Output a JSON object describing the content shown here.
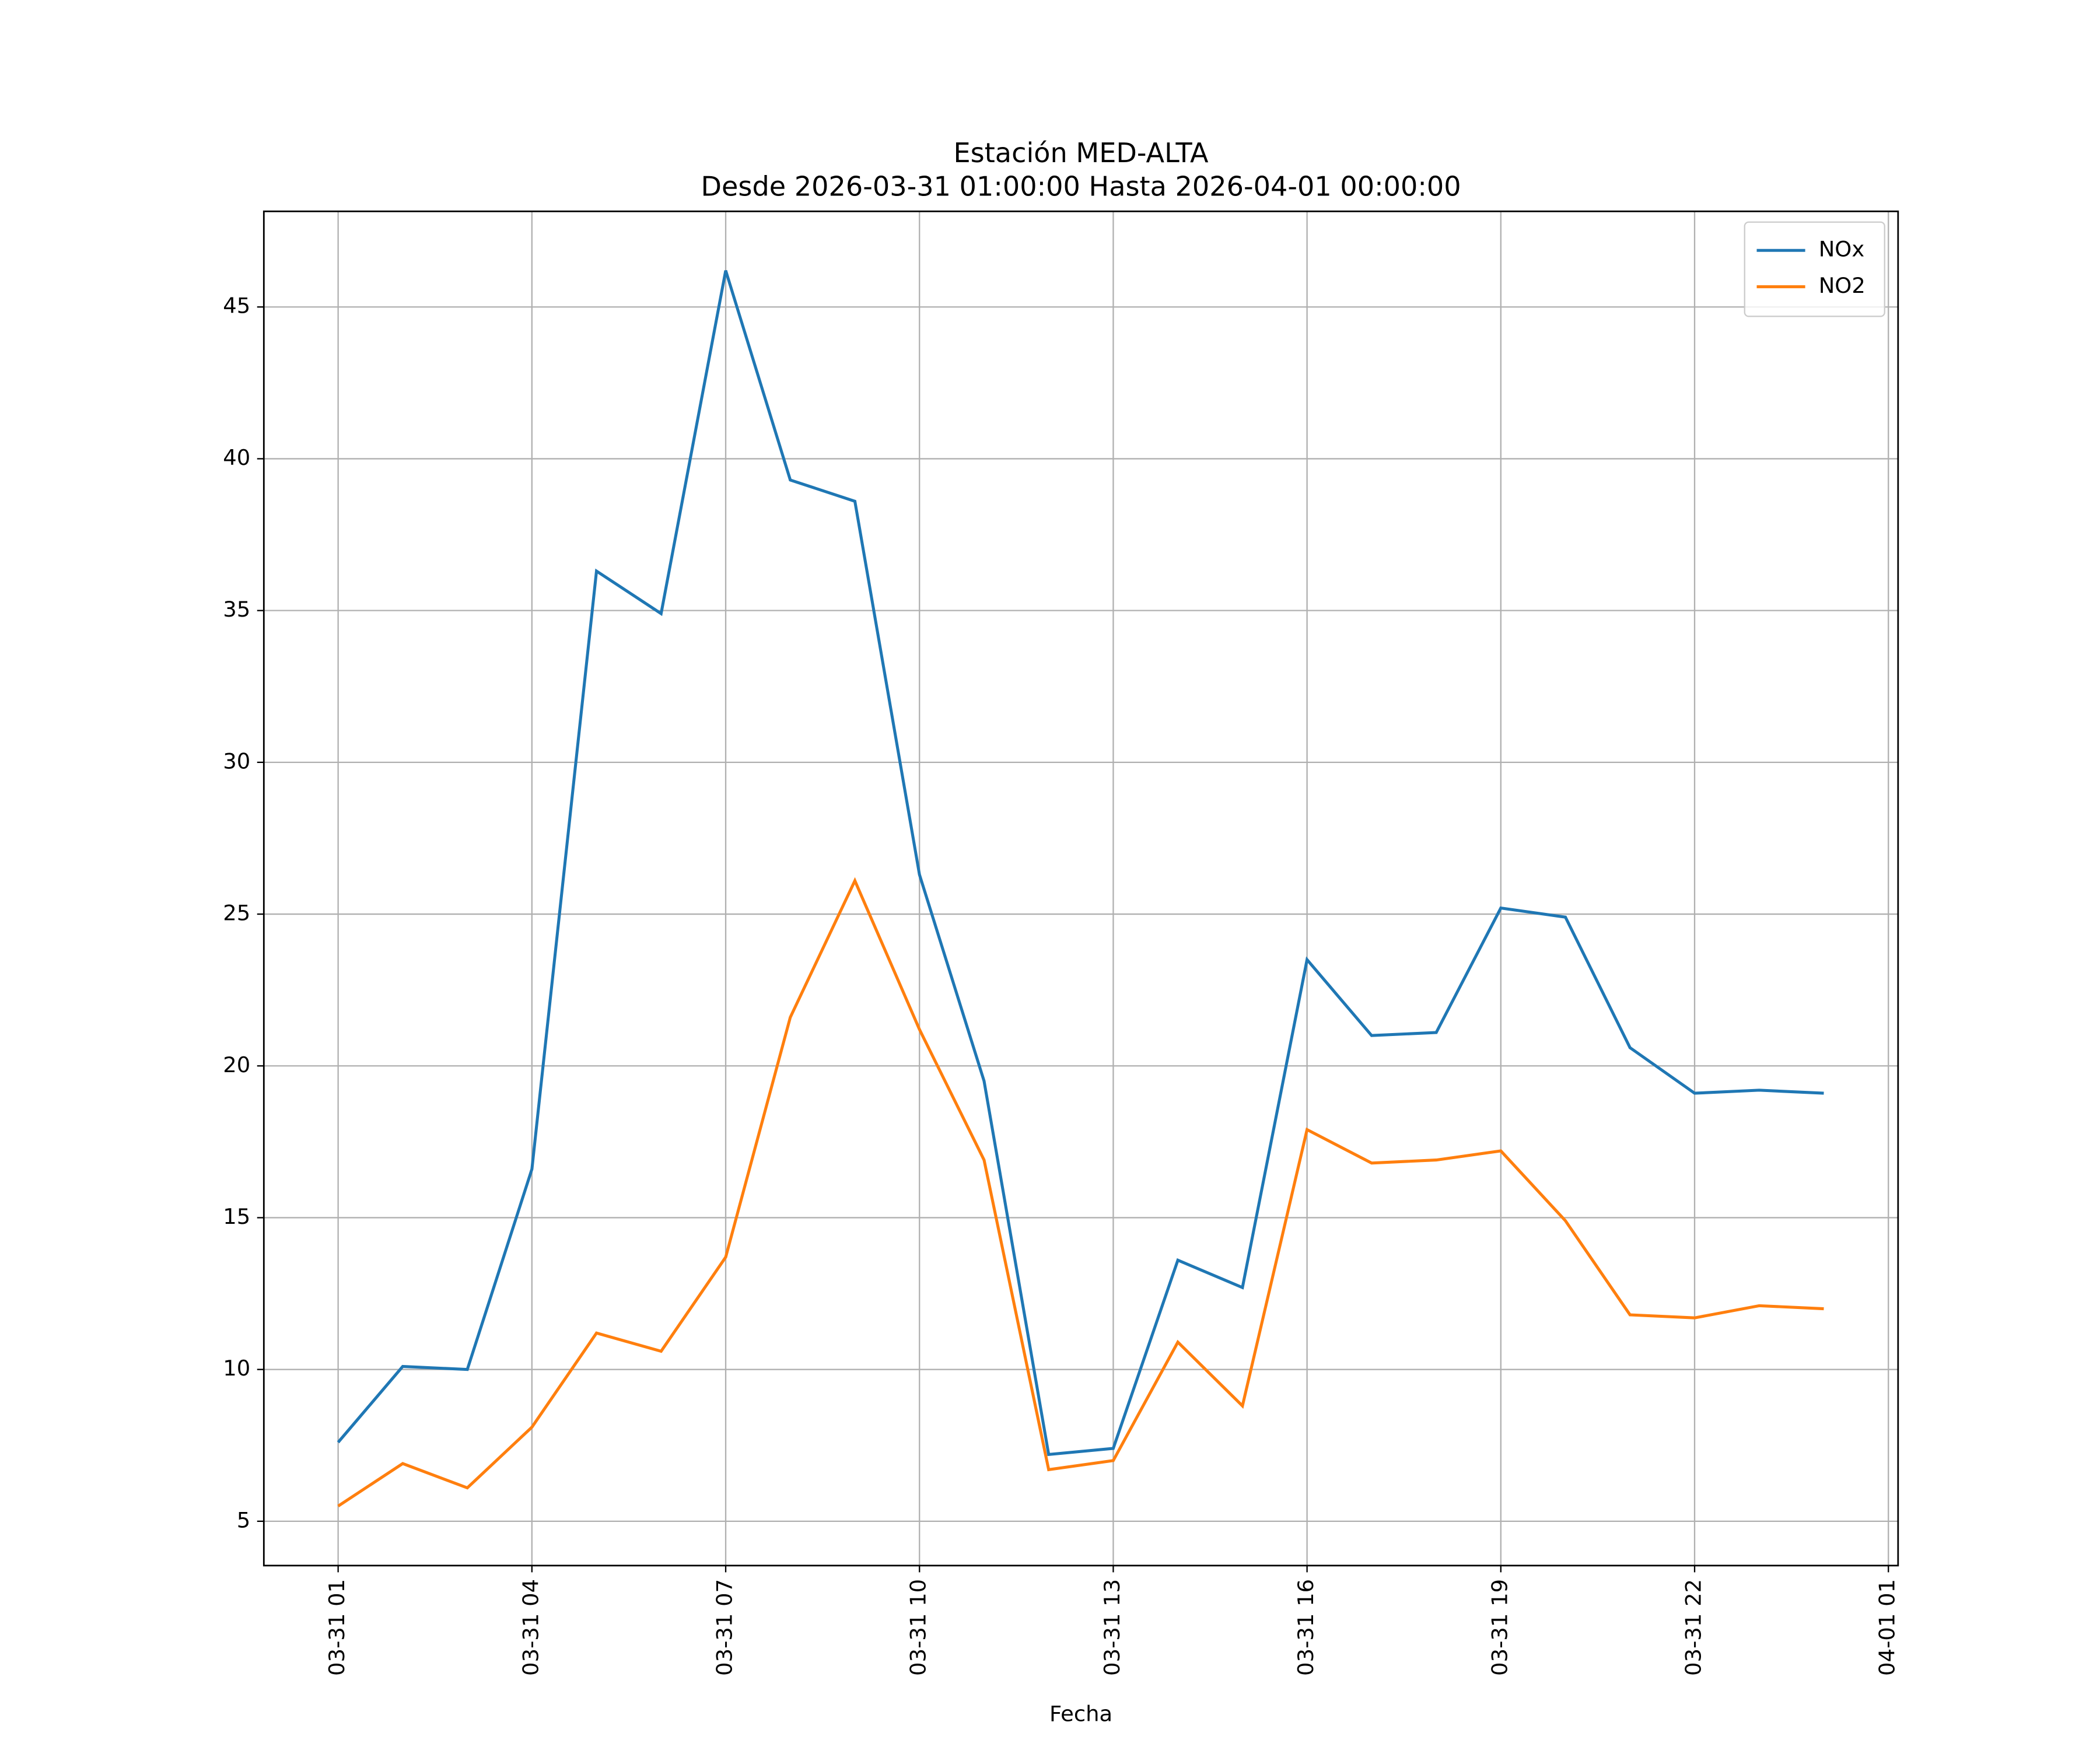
{
  "chart_data": {
    "type": "line",
    "title": "Estación MED-ALTA",
    "subtitle": "Desde 2026-03-31 01:00:00 Hasta 2026-04-01 00:00:00",
    "xlabel": "Fecha",
    "x": [
      "03-31 01",
      "03-31 02",
      "03-31 03",
      "03-31 04",
      "03-31 05",
      "03-31 06",
      "03-31 07",
      "03-31 08",
      "03-31 09",
      "03-31 10",
      "03-31 11",
      "03-31 12",
      "03-31 13",
      "03-31 14",
      "03-31 15",
      "03-31 16",
      "03-31 17",
      "03-31 18",
      "03-31 19",
      "03-31 20",
      "03-31 21",
      "03-31 22",
      "03-31 23",
      "04-01 00"
    ],
    "series": [
      {
        "name": "NOx",
        "color": "#1f77b4",
        "values": [
          7.6,
          10.1,
          10.0,
          16.6,
          36.3,
          34.9,
          46.2,
          39.3,
          38.6,
          26.3,
          19.5,
          7.2,
          7.4,
          13.6,
          12.7,
          23.5,
          21.0,
          21.1,
          25.2,
          24.9,
          20.6,
          19.1,
          19.2,
          19.1
        ]
      },
      {
        "name": "NO2",
        "color": "#ff7f0e",
        "values": [
          5.5,
          6.9,
          6.1,
          8.1,
          11.2,
          10.6,
          13.7,
          21.6,
          26.1,
          21.2,
          16.9,
          6.7,
          7.0,
          10.9,
          8.8,
          17.9,
          16.8,
          16.9,
          17.2,
          14.9,
          11.8,
          11.7,
          12.1,
          12.0
        ]
      }
    ],
    "xlim": [
      "03-30 23:51",
      "04-01 01:09"
    ],
    "xticks": [
      "03-31 01",
      "03-31 04",
      "03-31 07",
      "03-31 10",
      "03-31 13",
      "03-31 16",
      "03-31 19",
      "03-31 22",
      "04-01 01"
    ],
    "ylim": [
      3.54,
      48.15
    ],
    "yticks": [
      5,
      10,
      15,
      20,
      25,
      30,
      35,
      40,
      45
    ],
    "grid": true,
    "legend": "upper right"
  }
}
